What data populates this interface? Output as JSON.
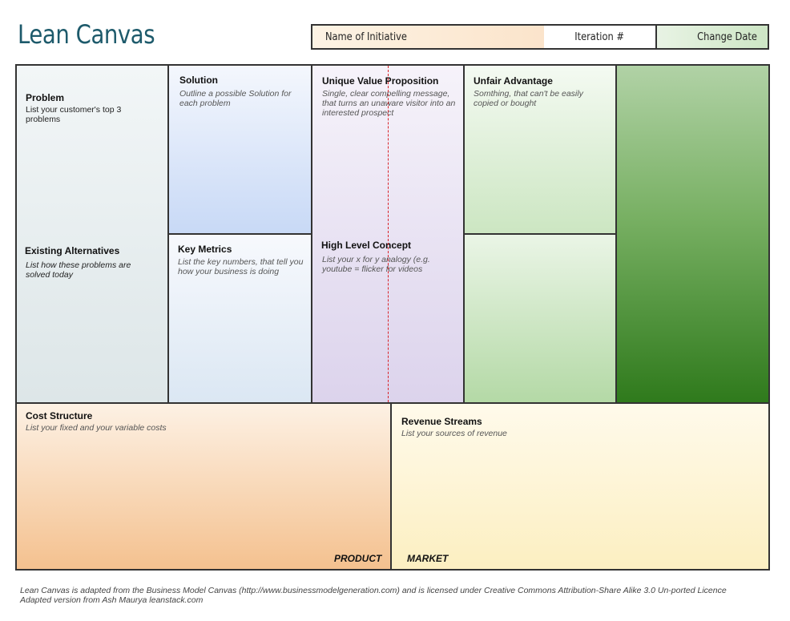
{
  "header": {
    "title": "Lean Canvas",
    "name_label": "Name of Initiative",
    "iteration_label": "Iteration #",
    "change_date_label": "Change Date"
  },
  "blocks": {
    "problem": {
      "title": "Problem",
      "desc": "List your customer's top 3 problems"
    },
    "alternatives": {
      "title": "Existing Alternatives",
      "desc": "List how these problems are solved today"
    },
    "solution": {
      "title": "Solution",
      "desc": "Outline a possible Solution for each problem"
    },
    "key_metrics": {
      "title": "Key Metrics",
      "desc": "List the key numbers, that tell you how your business is doing"
    },
    "uvp": {
      "title": "Unique Value Proposition",
      "desc": "Single, clear compelling message, that turns an unaware visitor into an interested prospect"
    },
    "high_level": {
      "title": "High Level Concept",
      "desc": "List your x for y analogy (e.g. youtube = flicker for videos"
    },
    "unfair": {
      "title": "Unfair Advantage",
      "desc": "Somthing, that can't be easily copied or bought"
    },
    "cost": {
      "title": "Cost Structure",
      "desc": "List your fixed and your variable costs"
    },
    "revenue": {
      "title": "Revenue Streams",
      "desc": "List your sources of revenue"
    }
  },
  "labels": {
    "product": "PRODUCT",
    "market": "MARKET"
  },
  "footer": {
    "line1": "Lean Canvas is adapted from the Business Model Canvas (http://www.businessmodelgeneration.com) and is licensed under Creative Commons Attribution-Share Alike 3.0 Un-ported Licence",
    "line2": "Adapted version from Ash Maurya leanstack.com"
  },
  "colors": {
    "title": "#1d5a6b",
    "problem": "#e6eef0",
    "solution": "#cddcf7",
    "uvp": "#e1dbef",
    "unfair": "#d3ebcc",
    "segments": "#3f8a2c",
    "cost": "#f6c596",
    "revenue": "#fbf0c4"
  }
}
